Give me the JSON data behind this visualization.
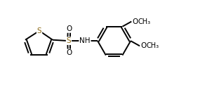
{
  "bg_color": "#ffffff",
  "line_color": "#000000",
  "atom_color": "#000000",
  "sulfur_color": "#8B6914",
  "line_width": 1.4,
  "font_size": 7.5,
  "fig_width": 3.12,
  "fig_height": 1.45,
  "dpi": 100,
  "xlim": [
    0,
    10.5
  ],
  "ylim": [
    0,
    5.0
  ]
}
